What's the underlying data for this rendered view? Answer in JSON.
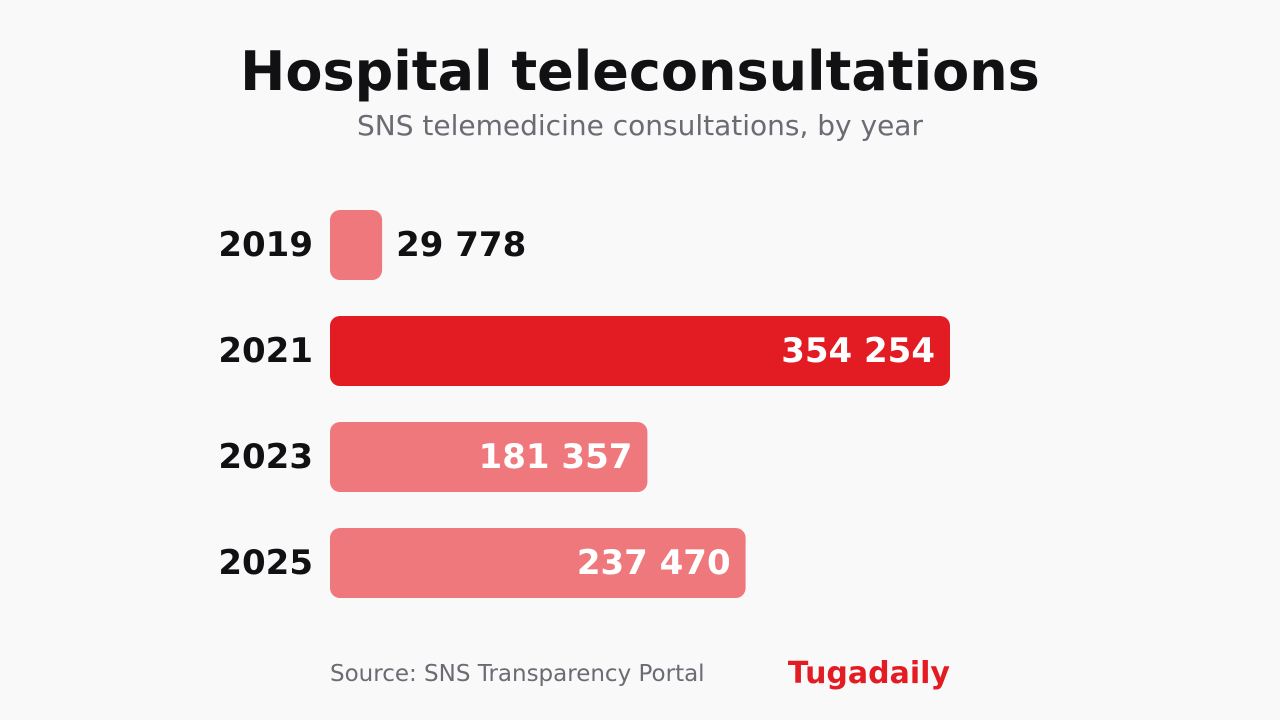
{
  "header": {
    "title": "Hospital teleconsultations",
    "subtitle": "SNS telemedicine consultations, by year"
  },
  "footer": {
    "source": "Source: SNS Transparency Portal",
    "brand": "Tugadaily"
  },
  "colors": {
    "highlight": "#e31b23",
    "muted": "#ee787b",
    "label_dark": "#111114",
    "label_light": "#ffffff",
    "brand": "#e31b23"
  },
  "chart_data": {
    "type": "bar",
    "orientation": "horizontal",
    "title": "Hospital teleconsultations",
    "subtitle": "SNS telemedicine consultations, by year",
    "categories": [
      "2019",
      "2021",
      "2023",
      "2025"
    ],
    "values": [
      29778,
      354254,
      181357,
      237470
    ],
    "value_labels": [
      "29 778",
      "354 254",
      "181 357",
      "237 470"
    ],
    "highlight_category": "2021",
    "xlim": [
      0,
      354254
    ],
    "grid": false,
    "legend": "none",
    "xlabel": "",
    "ylabel": ""
  }
}
